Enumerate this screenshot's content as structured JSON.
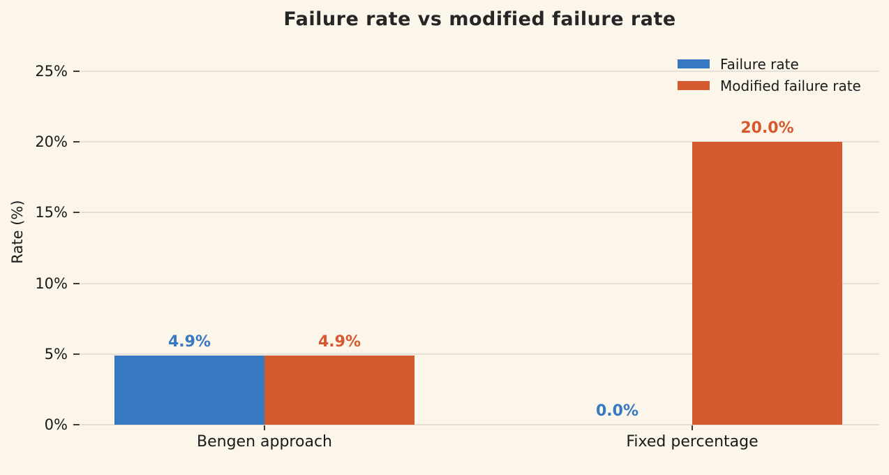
{
  "chart_data": {
    "type": "bar",
    "title": "Failure rate vs modified failure rate",
    "categories": [
      "Bengen approach",
      "Fixed percentage"
    ],
    "series": [
      {
        "name": "Failure rate",
        "color": "#3778c2",
        "values": [
          4.9,
          0.0
        ],
        "value_labels": [
          "4.9%",
          "0.0%"
        ]
      },
      {
        "name": "Modified failure rate",
        "color": "#d5592e",
        "values": [
          4.9,
          20.0
        ],
        "value_labels": [
          "4.9%",
          "20.0%"
        ]
      }
    ],
    "xlabel": "",
    "ylabel": "Rate (%)",
    "ylim": [
      0,
      25
    ],
    "yticks": [
      0,
      5,
      10,
      15,
      20,
      25
    ],
    "ytick_labels": [
      "0%",
      "5%",
      "10%",
      "15%",
      "20%",
      "25%"
    ],
    "grid": true,
    "legend_position": "top-right"
  },
  "colors": {
    "background": "#fcf5ea",
    "grid": "#e7e0d7",
    "axis_tick": "#3a3a3a",
    "text": "#1a1a1a",
    "title": "#262626"
  }
}
